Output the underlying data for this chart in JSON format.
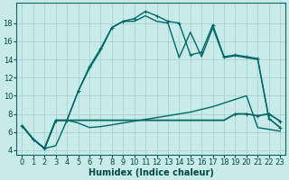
{
  "background_color": "#c8eae8",
  "grid_color": "#a8d4d0",
  "line_color": "#006868",
  "xlabel": "Humidex (Indice chaleur)",
  "x_ticks": [
    0,
    1,
    2,
    3,
    4,
    5,
    6,
    7,
    8,
    9,
    10,
    11,
    12,
    13,
    14,
    15,
    16,
    17,
    18,
    19,
    20,
    21,
    22,
    23
  ],
  "ylim": [
    3.5,
    20.2
  ],
  "xlim": [
    -0.5,
    23.5
  ],
  "y_ticks": [
    4,
    6,
    8,
    10,
    12,
    14,
    16,
    18
  ],
  "curve_marker_x": [
    0,
    1,
    2,
    3,
    4,
    5,
    6,
    7,
    8,
    9,
    10,
    11,
    12,
    13,
    14,
    15,
    16,
    17,
    18,
    19,
    20,
    21,
    22,
    23
  ],
  "curve_marker_y": [
    6.7,
    5.2,
    4.2,
    7.3,
    7.3,
    10.5,
    13.2,
    15.2,
    17.5,
    18.2,
    18.5,
    19.3,
    18.8,
    18.2,
    18.0,
    14.5,
    14.8,
    17.8,
    14.3,
    14.5,
    14.3,
    14.1,
    7.5,
    6.5
  ],
  "curve_solid_x": [
    0,
    1,
    2,
    3,
    4,
    5,
    6,
    7,
    8,
    9,
    10,
    11,
    12,
    13,
    14,
    15,
    16,
    17,
    18,
    19,
    20,
    21,
    22,
    23
  ],
  "curve_solid_y": [
    6.7,
    5.2,
    4.2,
    7.3,
    7.3,
    10.5,
    13.0,
    15.0,
    17.5,
    18.2,
    18.2,
    18.8,
    18.2,
    18.0,
    14.2,
    17.0,
    14.3,
    17.5,
    14.2,
    14.4,
    14.2,
    14.0,
    7.5,
    6.5
  ],
  "curve_flat_x": [
    0,
    1,
    2,
    3,
    4,
    5,
    6,
    7,
    8,
    9,
    10,
    11,
    12,
    13,
    14,
    15,
    16,
    17,
    18,
    19,
    20,
    21,
    22,
    23
  ],
  "curve_flat_y": [
    6.7,
    5.2,
    4.2,
    7.3,
    7.3,
    7.3,
    7.3,
    7.3,
    7.3,
    7.3,
    7.3,
    7.3,
    7.3,
    7.3,
    7.3,
    7.3,
    7.3,
    7.3,
    7.3,
    8.0,
    8.0,
    7.8,
    8.0,
    7.2
  ],
  "curve_diag_x": [
    0,
    1,
    2,
    3,
    4,
    5,
    6,
    7,
    8,
    9,
    10,
    11,
    12,
    13,
    14,
    15,
    16,
    17,
    18,
    19,
    20,
    21,
    22,
    23
  ],
  "curve_diag_y": [
    6.7,
    5.2,
    4.2,
    4.5,
    7.3,
    7.0,
    6.5,
    6.6,
    6.8,
    7.0,
    7.2,
    7.4,
    7.6,
    7.8,
    8.0,
    8.2,
    8.5,
    8.8,
    9.2,
    9.6,
    10.0,
    6.5,
    6.3,
    6.1
  ]
}
